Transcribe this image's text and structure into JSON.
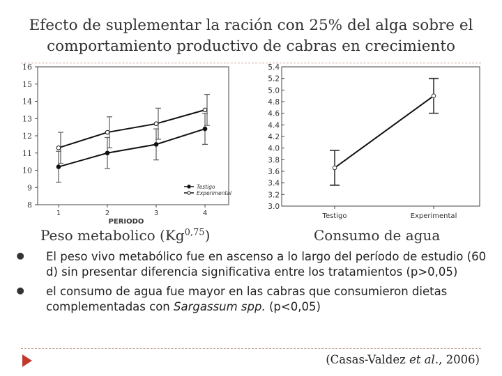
{
  "slide": {
    "title_line1": "Efecto de suplementar la ración con 25% del alga sobre el",
    "title_line2": "comportamiento productivo de cabras en crecimiento",
    "caption_left_main": "Peso metabolico (Kg",
    "caption_left_sup": "0,75",
    "caption_left_end": ")",
    "caption_right": "Consumo de agua",
    "bullet1": "El peso vivo metabólico fue en ascenso a lo largo del período de estudio (60 d) sin presentar diferencia significativa entre los tratamientos (p>0,05)",
    "bullet2_pre": "el consumo de agua fue mayor en las cabras que consumieron dietas complementadas con ",
    "bullet2_italic": "Sargassum spp.",
    "bullet2_post": " (p<0,05)",
    "cite_pre": "(Casas-Valdez ",
    "cite_italic": "et al.",
    "cite_post": ", 2006)",
    "colors": {
      "accent": "#c0392b",
      "dash": "#c9a59a",
      "line": "#111111",
      "errorbar": "#666666"
    },
    "icons": [
      "bullet-icon",
      "play-arrow-icon"
    ]
  },
  "chart_data": [
    {
      "type": "line",
      "x": [
        1,
        2,
        3,
        4
      ],
      "xlabel": "PERIODO",
      "ylabel": "",
      "ylim": [
        8,
        16
      ],
      "yticks": [
        "8",
        "9",
        "10",
        "11",
        "12",
        "13",
        "14",
        "15",
        "16"
      ],
      "xticks": [
        "1",
        "2",
        "3",
        "4"
      ],
      "legend_position": "bottom-right",
      "series": [
        {
          "name": "Testigo",
          "values": [
            10.2,
            11.0,
            11.5,
            12.4
          ],
          "err": [
            0.9,
            0.9,
            0.9,
            0.9
          ],
          "marker": "filled"
        },
        {
          "name": "Experimental",
          "values": [
            11.3,
            12.2,
            12.7,
            13.5
          ],
          "err": [
            0.9,
            0.9,
            0.9,
            0.9
          ],
          "marker": "open"
        }
      ]
    },
    {
      "type": "line",
      "categories": [
        "Testigo",
        "Experimental"
      ],
      "ylim": [
        3.0,
        5.4
      ],
      "yticks": [
        "3.0",
        "3.2",
        "3.4",
        "3.6",
        "3.8",
        "4.0",
        "4.2",
        "4.4",
        "4.6",
        "4.8",
        "5.0",
        "5.2",
        "5.4"
      ],
      "series": [
        {
          "values": [
            3.66,
            4.9
          ],
          "err": [
            0.3,
            0.3
          ]
        }
      ]
    }
  ]
}
